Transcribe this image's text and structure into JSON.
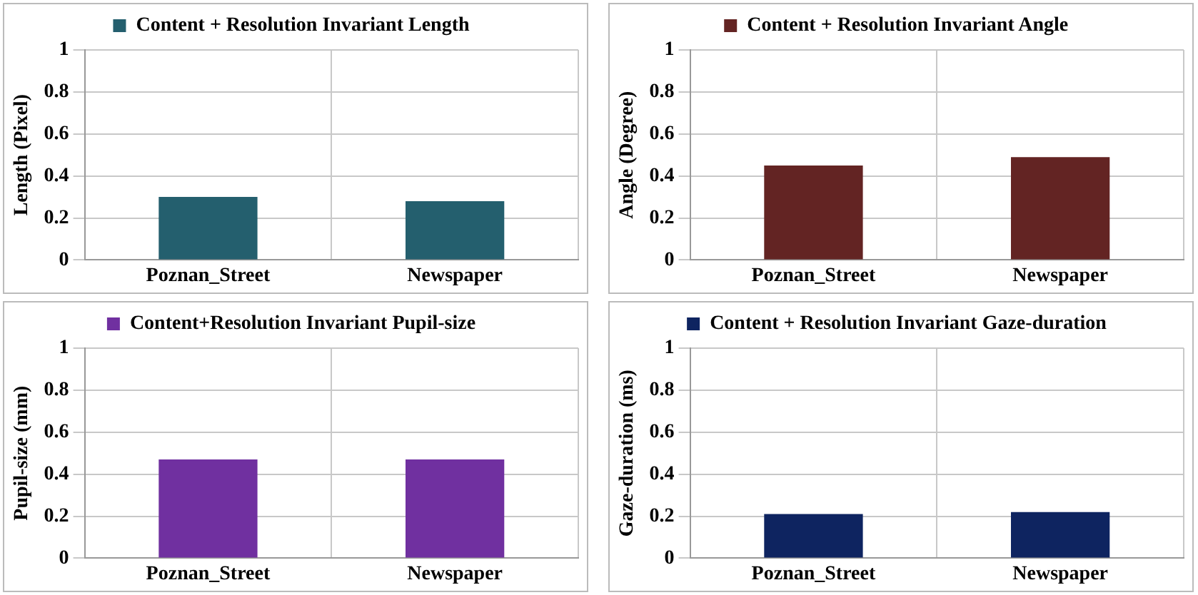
{
  "chart_data": [
    {
      "type": "bar",
      "ylabel": "Length (Pixel)",
      "categories": [
        "Poznan_Street",
        "Newspaper"
      ],
      "series": [
        {
          "name": "Content + Resolution Invariant Length",
          "color": "#245f6e",
          "values": [
            0.3,
            0.28
          ]
        }
      ],
      "ylim": [
        0,
        1
      ],
      "yticks": [
        0,
        0.2,
        0.4,
        0.6,
        0.8,
        1
      ],
      "grid": true,
      "legend": "top"
    },
    {
      "type": "bar",
      "ylabel": "Angle (Degree)",
      "categories": [
        "Poznan_Street",
        "Newspaper"
      ],
      "series": [
        {
          "name": "Content + Resolution Invariant Angle",
          "color": "#632423",
          "values": [
            0.45,
            0.49
          ]
        }
      ],
      "ylim": [
        0,
        1
      ],
      "yticks": [
        0,
        0.2,
        0.4,
        0.6,
        0.8,
        1
      ],
      "grid": true,
      "legend": "top"
    },
    {
      "type": "bar",
      "ylabel": "Pupil-size (mm)",
      "categories": [
        "Poznan_Street",
        "Newspaper"
      ],
      "series": [
        {
          "name": "Content+Resolution Invariant Pupil-size",
          "color": "#7030a0",
          "values": [
            0.47,
            0.47
          ]
        }
      ],
      "ylim": [
        0,
        1
      ],
      "yticks": [
        0,
        0.2,
        0.4,
        0.6,
        0.8,
        1
      ],
      "grid": true,
      "legend": "top"
    },
    {
      "type": "bar",
      "ylabel": "Gaze-duration (ms)",
      "categories": [
        "Poznan_Street",
        "Newspaper"
      ],
      "series": [
        {
          "name": "Content + Resolution Invariant Gaze-duration",
          "color": "#0e2460",
          "values": [
            0.21,
            0.22
          ]
        }
      ],
      "ylim": [
        0,
        1
      ],
      "yticks": [
        0,
        0.2,
        0.4,
        0.6,
        0.8,
        1
      ],
      "grid": true,
      "legend": "top"
    }
  ]
}
